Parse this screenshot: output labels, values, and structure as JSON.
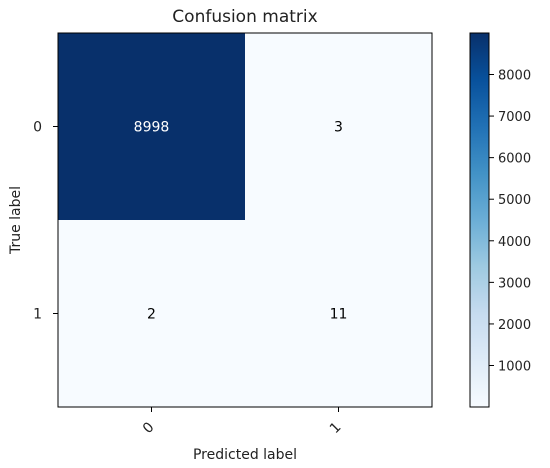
{
  "chart_data": {
    "type": "heatmap",
    "title": "Confusion matrix",
    "xlabel": "Predicted label",
    "ylabel": "True label",
    "x_categories": [
      "0",
      "1"
    ],
    "y_categories": [
      "0",
      "1"
    ],
    "matrix": [
      [
        8998,
        3
      ],
      [
        2,
        11
      ]
    ],
    "colormap": "Blues",
    "colorbar": {
      "min": 2,
      "max": 8998,
      "ticks": [
        1000,
        2000,
        3000,
        4000,
        5000,
        6000,
        7000,
        8000
      ]
    },
    "grid": false
  }
}
